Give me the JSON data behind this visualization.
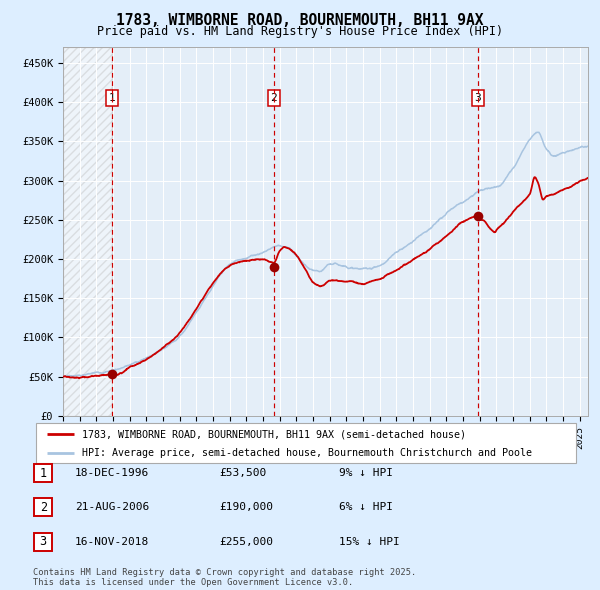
{
  "title_line1": "1783, WIMBORNE ROAD, BOURNEMOUTH, BH11 9AX",
  "title_line2": "Price paid vs. HM Land Registry's House Price Index (HPI)",
  "hpi_label": "HPI: Average price, semi-detached house, Bournemouth Christchurch and Poole",
  "property_label": "1783, WIMBORNE ROAD, BOURNEMOUTH, BH11 9AX (semi-detached house)",
  "hpi_color": "#a8c4e0",
  "property_color": "#cc0000",
  "sale_marker_color": "#990000",
  "vline_color": "#cc0000",
  "background_color": "#ddeeff",
  "plot_bg_color": "#e4eef8",
  "grid_color": "#ffffff",
  "ylim": [
    0,
    470000
  ],
  "xlim_start": 1994.0,
  "xlim_end": 2025.5,
  "sales": [
    {
      "num": 1,
      "year": 1996.96,
      "price": 53500,
      "label": "18-DEC-1996",
      "pct": "9%",
      "dir": "↓"
    },
    {
      "num": 2,
      "year": 2006.64,
      "price": 190000,
      "label": "21-AUG-2006",
      "pct": "6%",
      "dir": "↓"
    },
    {
      "num": 3,
      "year": 2018.88,
      "price": 255000,
      "label": "16-NOV-2018",
      "pct": "15%",
      "dir": "↓"
    }
  ],
  "footer_text": "Contains HM Land Registry data © Crown copyright and database right 2025.\nThis data is licensed under the Open Government Licence v3.0.",
  "yticks": [
    0,
    50000,
    100000,
    150000,
    200000,
    250000,
    300000,
    350000,
    400000,
    450000
  ],
  "ytick_labels": [
    "£0",
    "£50K",
    "£100K",
    "£150K",
    "£200K",
    "£250K",
    "£300K",
    "£350K",
    "£400K",
    "£450K"
  ],
  "hpi_keypoints": [
    [
      1994.0,
      51000
    ],
    [
      1995.0,
      53000
    ],
    [
      1996.0,
      55000
    ],
    [
      1997.0,
      60000
    ],
    [
      1998.0,
      67000
    ],
    [
      1999.0,
      76000
    ],
    [
      2000.0,
      90000
    ],
    [
      2001.0,
      108000
    ],
    [
      2002.0,
      140000
    ],
    [
      2003.0,
      175000
    ],
    [
      2004.0,
      200000
    ],
    [
      2005.0,
      210000
    ],
    [
      2006.0,
      218000
    ],
    [
      2007.0,
      228000
    ],
    [
      2007.5,
      225000
    ],
    [
      2008.0,
      215000
    ],
    [
      2009.0,
      195000
    ],
    [
      2009.5,
      192000
    ],
    [
      2010.0,
      200000
    ],
    [
      2011.0,
      198000
    ],
    [
      2012.0,
      195000
    ],
    [
      2013.0,
      200000
    ],
    [
      2014.0,
      215000
    ],
    [
      2015.0,
      230000
    ],
    [
      2016.0,
      248000
    ],
    [
      2017.0,
      265000
    ],
    [
      2018.0,
      280000
    ],
    [
      2019.0,
      295000
    ],
    [
      2020.0,
      300000
    ],
    [
      2021.0,
      325000
    ],
    [
      2022.0,
      365000
    ],
    [
      2022.5,
      375000
    ],
    [
      2023.0,
      355000
    ],
    [
      2023.5,
      345000
    ],
    [
      2024.0,
      350000
    ],
    [
      2025.0,
      358000
    ],
    [
      2025.5,
      360000
    ]
  ],
  "prop_keypoints": [
    [
      1994.0,
      50000
    ],
    [
      1994.5,
      50500
    ],
    [
      1995.0,
      51000
    ],
    [
      1996.0,
      52000
    ],
    [
      1996.96,
      53500
    ],
    [
      1997.5,
      56000
    ],
    [
      1998.0,
      62000
    ],
    [
      1999.0,
      72000
    ],
    [
      2000.0,
      86000
    ],
    [
      2001.0,
      103000
    ],
    [
      2002.0,
      133000
    ],
    [
      2003.0,
      163000
    ],
    [
      2004.0,
      185000
    ],
    [
      2005.0,
      192000
    ],
    [
      2006.0,
      195000
    ],
    [
      2006.64,
      190000
    ],
    [
      2007.0,
      205000
    ],
    [
      2007.3,
      210000
    ],
    [
      2007.8,
      205000
    ],
    [
      2008.5,
      185000
    ],
    [
      2009.0,
      168000
    ],
    [
      2009.5,
      163000
    ],
    [
      2010.0,
      170000
    ],
    [
      2011.0,
      170000
    ],
    [
      2012.0,
      168000
    ],
    [
      2013.0,
      175000
    ],
    [
      2014.0,
      188000
    ],
    [
      2015.0,
      200000
    ],
    [
      2016.0,
      215000
    ],
    [
      2017.0,
      232000
    ],
    [
      2018.0,
      248000
    ],
    [
      2018.88,
      255000
    ],
    [
      2019.0,
      252000
    ],
    [
      2019.3,
      248000
    ],
    [
      2019.6,
      240000
    ],
    [
      2019.9,
      235000
    ],
    [
      2020.0,
      238000
    ],
    [
      2020.5,
      248000
    ],
    [
      2021.0,
      260000
    ],
    [
      2021.5,
      272000
    ],
    [
      2022.0,
      283000
    ],
    [
      2022.3,
      305000
    ],
    [
      2022.5,
      298000
    ],
    [
      2022.8,
      278000
    ],
    [
      2023.0,
      282000
    ],
    [
      2023.5,
      285000
    ],
    [
      2024.0,
      290000
    ],
    [
      2024.5,
      295000
    ],
    [
      2025.0,
      300000
    ],
    [
      2025.5,
      303000
    ]
  ]
}
